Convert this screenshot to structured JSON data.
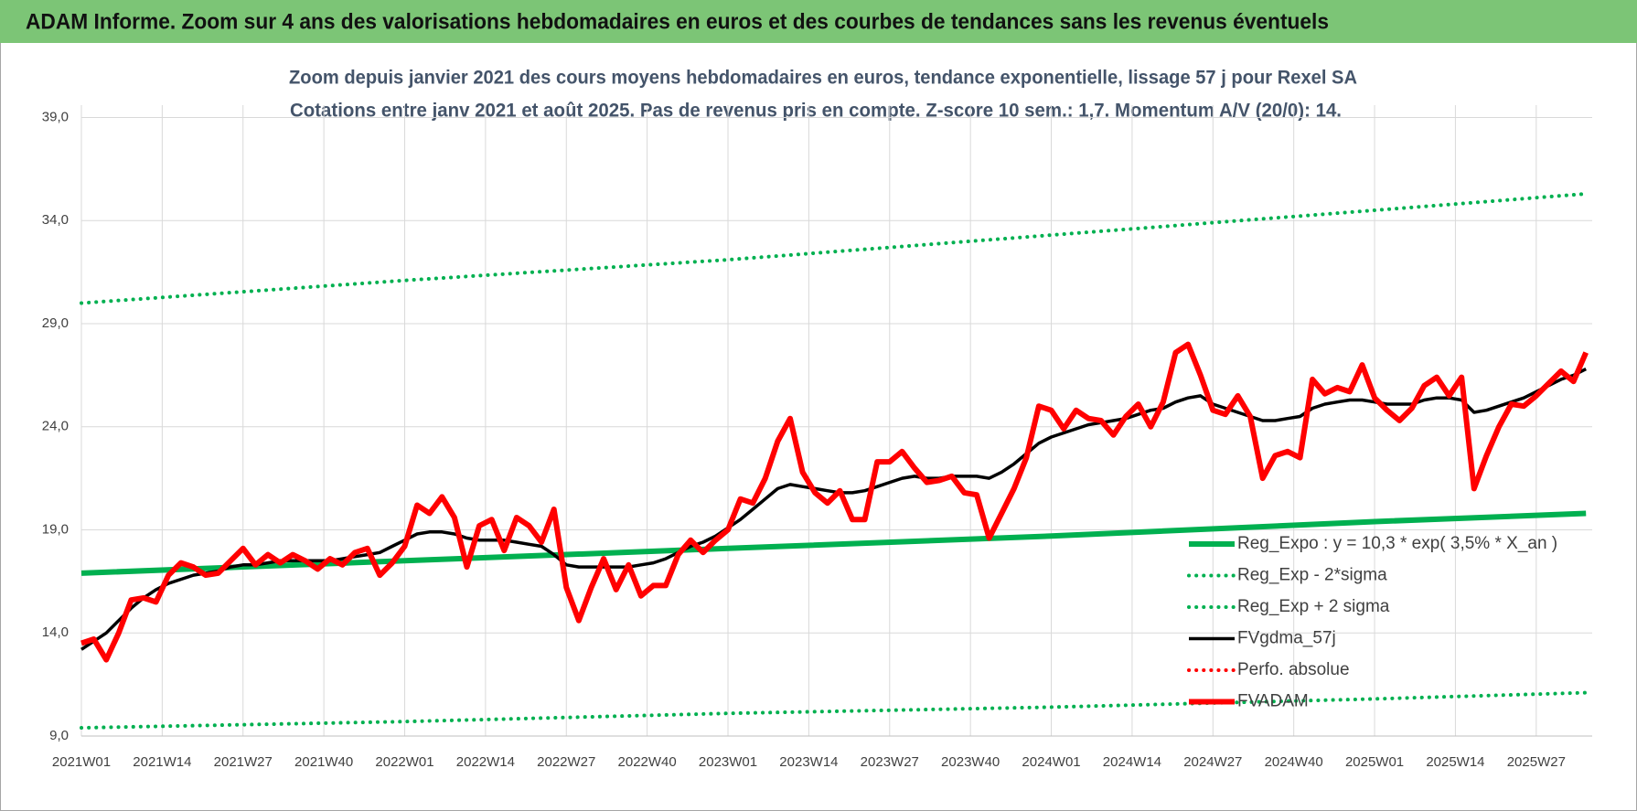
{
  "header": {
    "title": "ADAM Informe. Zoom sur 4 ans des valorisations hebdomadaires en euros et des courbes de tendances sans les revenus éventuels"
  },
  "chart_data": {
    "type": "line",
    "title": "Zoom depuis janvier 2021 des cours moyens hebdomadaires en euros, tendance exponentielle, lissage 57 j pour Rexel SA",
    "subtitle": "Cotations entre janv 2021 et août 2025.  Pas de revenus pris en compte. Z-score 10 sem.: 1,7. Momentum A/V (20/0): 14.",
    "grid": true,
    "xlim": [
      0,
      243
    ],
    "ylim": [
      9,
      39.6
    ],
    "xticks": [
      {
        "value": 0,
        "label": "2021W01"
      },
      {
        "value": 13,
        "label": "2021W14"
      },
      {
        "value": 26,
        "label": "2021W27"
      },
      {
        "value": 39,
        "label": "2021W40"
      },
      {
        "value": 52,
        "label": "2022W01"
      },
      {
        "value": 65,
        "label": "2022W14"
      },
      {
        "value": 78,
        "label": "2022W27"
      },
      {
        "value": 91,
        "label": "2022W40"
      },
      {
        "value": 104,
        "label": "2023W01"
      },
      {
        "value": 117,
        "label": "2023W14"
      },
      {
        "value": 130,
        "label": "2023W27"
      },
      {
        "value": 143,
        "label": "2023W40"
      },
      {
        "value": 156,
        "label": "2024W01"
      },
      {
        "value": 169,
        "label": "2024W14"
      },
      {
        "value": 182,
        "label": "2024W27"
      },
      {
        "value": 195,
        "label": "2024W40"
      },
      {
        "value": 208,
        "label": "2025W01"
      },
      {
        "value": 221,
        "label": "2025W14"
      },
      {
        "value": 234,
        "label": "2025W27"
      }
    ],
    "yticks": [
      {
        "value": 9,
        "label": "9,0"
      },
      {
        "value": 14,
        "label": "14,0"
      },
      {
        "value": 19,
        "label": "19,0"
      },
      {
        "value": 24,
        "label": "24,0"
      },
      {
        "value": 29,
        "label": "29,0"
      },
      {
        "value": 34,
        "label": "34,0"
      },
      {
        "value": 39,
        "label": "39,0"
      }
    ],
    "x": [
      0,
      2,
      4,
      6,
      8,
      10,
      12,
      14,
      16,
      18,
      20,
      22,
      24,
      26,
      28,
      30,
      32,
      34,
      36,
      38,
      40,
      42,
      44,
      46,
      48,
      50,
      52,
      54,
      56,
      58,
      60,
      62,
      64,
      66,
      68,
      70,
      72,
      74,
      76,
      78,
      80,
      82,
      84,
      86,
      88,
      90,
      92,
      94,
      96,
      98,
      100,
      102,
      104,
      106,
      108,
      110,
      112,
      114,
      116,
      118,
      120,
      122,
      124,
      126,
      128,
      130,
      132,
      134,
      136,
      138,
      140,
      142,
      144,
      146,
      148,
      150,
      152,
      154,
      156,
      158,
      160,
      162,
      164,
      166,
      168,
      170,
      172,
      174,
      176,
      178,
      180,
      182,
      184,
      186,
      188,
      190,
      192,
      194,
      196,
      198,
      200,
      202,
      204,
      206,
      208,
      210,
      212,
      214,
      216,
      218,
      220,
      222,
      224,
      226,
      228,
      230,
      232,
      234,
      236,
      238,
      240,
      242
    ],
    "series": [
      {
        "name": "Reg_Expo : y = 10,3 * exp( 3,5% *  X_an )",
        "color": "#00b050",
        "style": "solid",
        "x": [
          0,
          52,
          104,
          156,
          208,
          242
        ],
        "values": [
          16.9,
          17.5,
          18.1,
          18.7,
          19.4,
          19.8
        ]
      },
      {
        "name": "Reg_Exp - 2*sigma",
        "color": "#00b050",
        "style": "dotted",
        "x": [
          0,
          52,
          104,
          156,
          208,
          242
        ],
        "values": [
          9.4,
          9.7,
          10.1,
          10.4,
          10.8,
          11.1
        ]
      },
      {
        "name": "Reg_Exp + 2 sigma",
        "color": "#00b050",
        "style": "dotted",
        "x": [
          0,
          52,
          104,
          156,
          208,
          242
        ],
        "values": [
          30.0,
          31.1,
          32.1,
          33.3,
          34.5,
          35.3
        ]
      },
      {
        "name": "FVgdma_57j",
        "color": "#000000",
        "style": "medium",
        "values": [
          13.2,
          13.6,
          14.0,
          14.6,
          15.2,
          15.7,
          16.1,
          16.4,
          16.6,
          16.8,
          16.9,
          17.0,
          17.2,
          17.3,
          17.3,
          17.4,
          17.5,
          17.5,
          17.5,
          17.5,
          17.5,
          17.6,
          17.7,
          17.8,
          17.9,
          18.2,
          18.5,
          18.8,
          18.9,
          18.9,
          18.8,
          18.6,
          18.5,
          18.5,
          18.5,
          18.4,
          18.3,
          18.2,
          17.8,
          17.3,
          17.2,
          17.2,
          17.2,
          17.2,
          17.2,
          17.3,
          17.4,
          17.6,
          17.9,
          18.2,
          18.4,
          18.7,
          19.1,
          19.5,
          20.0,
          20.5,
          21.0,
          21.2,
          21.1,
          21.0,
          20.9,
          20.8,
          20.8,
          20.9,
          21.1,
          21.3,
          21.5,
          21.6,
          21.5,
          21.5,
          21.6,
          21.6,
          21.6,
          21.5,
          21.8,
          22.2,
          22.7,
          23.2,
          23.5,
          23.7,
          23.9,
          24.1,
          24.2,
          24.3,
          24.4,
          24.6,
          24.8,
          24.9,
          25.2,
          25.4,
          25.5,
          25.1,
          24.9,
          24.7,
          24.5,
          24.3,
          24.3,
          24.4,
          24.5,
          24.9,
          25.1,
          25.2,
          25.3,
          25.3,
          25.2,
          25.1,
          25.1,
          25.1,
          25.3,
          25.4,
          25.4,
          25.3,
          24.7,
          24.8,
          25.0,
          25.2,
          25.4,
          25.7,
          26.0,
          26.3,
          26.5,
          26.8
        ]
      },
      {
        "name": "Perfo. absolue",
        "color": "#ff0000",
        "style": "dotted"
      },
      {
        "name": "FVADAM",
        "color": "#ff0000",
        "style": "bold",
        "values": [
          13.5,
          13.7,
          12.7,
          14.0,
          15.6,
          15.7,
          15.5,
          16.8,
          17.4,
          17.2,
          16.8,
          16.9,
          17.5,
          18.1,
          17.3,
          17.8,
          17.4,
          17.8,
          17.5,
          17.1,
          17.6,
          17.3,
          17.9,
          18.1,
          16.8,
          17.4,
          18.2,
          20.2,
          19.8,
          20.6,
          19.6,
          17.2,
          19.2,
          19.5,
          18.0,
          19.6,
          19.2,
          18.4,
          20.0,
          16.2,
          14.6,
          16.2,
          17.6,
          16.1,
          17.3,
          15.8,
          16.3,
          16.3,
          17.8,
          18.5,
          17.9,
          18.5,
          19.0,
          20.5,
          20.3,
          21.5,
          23.3,
          24.4,
          21.8,
          20.8,
          20.3,
          20.9,
          19.5,
          19.5,
          22.3,
          22.3,
          22.8,
          22.0,
          21.3,
          21.4,
          21.6,
          20.8,
          20.7,
          18.6,
          19.8,
          21.0,
          22.5,
          25.0,
          24.8,
          23.9,
          24.8,
          24.4,
          24.3,
          23.6,
          24.5,
          25.1,
          24.0,
          25.2,
          27.6,
          28.0,
          26.5,
          24.8,
          24.6,
          25.5,
          24.5,
          21.5,
          22.6,
          22.8,
          22.5,
          26.3,
          25.6,
          25.9,
          25.7,
          27.0,
          25.4,
          24.8,
          24.3,
          24.9,
          26.0,
          26.4,
          25.5,
          26.4,
          21.0,
          22.6,
          24.0,
          25.1,
          25.0,
          25.5,
          26.1,
          26.7,
          26.2,
          27.6
        ]
      }
    ]
  }
}
